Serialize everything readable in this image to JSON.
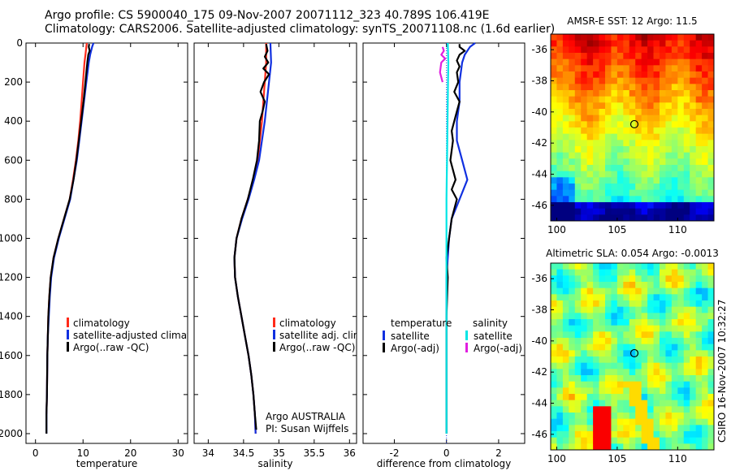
{
  "header": {
    "line1": "Argo profile: CS 5900040_175 09-Nov-2007 20071112_323 40.789S 106.419E",
    "line2": "Climatology: CARS2006. Satellite-adjusted climatology: synTS_20071108.nc (1.6d earlier)"
  },
  "side_label": "CSIRO 16-Nov-2007 10:32:27",
  "colors": {
    "climatology": "#ff2a1a",
    "satellite": "#1030e0",
    "argo": "#000000",
    "sal_satellite": "#00e5e5",
    "sal_argo": "#e020e0"
  },
  "chart_data": [
    {
      "type": "line",
      "name": "temperature-profile",
      "xlabel": "temperature",
      "ylabel": "",
      "xlim": [
        -2,
        32
      ],
      "ylim": [
        0,
        2050
      ],
      "y_reversed": true,
      "xticks": [
        0,
        10,
        20,
        30
      ],
      "yticks": [
        0,
        200,
        400,
        600,
        800,
        1000,
        1200,
        1400,
        1600,
        1800,
        2000
      ],
      "legend": [
        "climatology",
        "satellite-adjusted climatology",
        "Argo(..raw -QC)"
      ],
      "series": [
        {
          "name": "climatology",
          "color": "#ff2a1a",
          "points": [
            [
              10.8,
              0
            ],
            [
              10.7,
              20
            ],
            [
              10.5,
              60
            ],
            [
              10.3,
              100
            ],
            [
              10.0,
              200
            ],
            [
              9.7,
              300
            ],
            [
              9.4,
              400
            ],
            [
              9.0,
              500
            ],
            [
              8.5,
              600
            ],
            [
              7.9,
              700
            ],
            [
              7.2,
              800
            ],
            [
              6.0,
              900
            ],
            [
              4.8,
              1000
            ],
            [
              3.8,
              1100
            ],
            [
              3.2,
              1200
            ],
            [
              2.9,
              1300
            ],
            [
              2.7,
              1400
            ],
            [
              2.6,
              1500
            ],
            [
              2.5,
              1600
            ],
            [
              2.4,
              1800
            ],
            [
              2.3,
              1900
            ]
          ]
        },
        {
          "name": "satellite-adjusted climatology",
          "color": "#1030e0",
          "points": [
            [
              12.2,
              0
            ],
            [
              11.9,
              20
            ],
            [
              11.5,
              60
            ],
            [
              11.2,
              100
            ],
            [
              10.7,
              200
            ],
            [
              10.2,
              300
            ],
            [
              9.7,
              400
            ],
            [
              9.2,
              500
            ],
            [
              8.7,
              600
            ],
            [
              8.0,
              700
            ],
            [
              7.3,
              800
            ],
            [
              6.1,
              900
            ],
            [
              4.9,
              1000
            ],
            [
              3.9,
              1100
            ],
            [
              3.3,
              1200
            ],
            [
              3.0,
              1300
            ],
            [
              2.8,
              1400
            ],
            [
              2.6,
              1500
            ],
            [
              2.5,
              1600
            ],
            [
              2.4,
              1800
            ],
            [
              2.3,
              1900
            ],
            [
              2.3,
              2000
            ]
          ]
        },
        {
          "name": "Argo(..raw -QC)",
          "color": "#000000",
          "points": [
            [
              11.3,
              5
            ],
            [
              11.2,
              20
            ],
            [
              11.4,
              40
            ],
            [
              11.1,
              60
            ],
            [
              10.9,
              100
            ],
            [
              10.5,
              200
            ],
            [
              10.1,
              300
            ],
            [
              9.6,
              400
            ],
            [
              9.1,
              500
            ],
            [
              8.6,
              600
            ],
            [
              8.0,
              700
            ],
            [
              7.2,
              800
            ],
            [
              6.0,
              900
            ],
            [
              4.8,
              1000
            ],
            [
              3.8,
              1100
            ],
            [
              3.2,
              1200
            ],
            [
              2.9,
              1300
            ],
            [
              2.7,
              1400
            ],
            [
              2.6,
              1500
            ],
            [
              2.5,
              1600
            ],
            [
              2.4,
              1800
            ],
            [
              2.3,
              1900
            ],
            [
              2.3,
              2000
            ]
          ]
        }
      ]
    },
    {
      "type": "line",
      "name": "salinity-profile",
      "xlabel": "salinity",
      "xlim": [
        33.8,
        36.1
      ],
      "ylim": [
        0,
        2050
      ],
      "y_reversed": true,
      "xticks": [
        34,
        34.5,
        35,
        35.5,
        36
      ],
      "xticklabels": [
        "34",
        "34.5",
        "35",
        "35.5",
        "36"
      ],
      "legend": [
        "climatology",
        "satellite adj. clim.",
        "Argo(..raw -QC)"
      ],
      "annotation": [
        "Argo AUSTRALIA",
        "PI: Susan Wijffels"
      ],
      "series": [
        {
          "name": "climatology",
          "color": "#ff2a1a",
          "points": [
            [
              34.82,
              0
            ],
            [
              34.82,
              100
            ],
            [
              34.8,
              200
            ],
            [
              34.78,
              300
            ],
            [
              34.76,
              400
            ],
            [
              34.73,
              500
            ],
            [
              34.7,
              600
            ],
            [
              34.64,
              700
            ],
            [
              34.56,
              800
            ],
            [
              34.47,
              900
            ],
            [
              34.4,
              1000
            ],
            [
              34.37,
              1100
            ],
            [
              34.38,
              1200
            ],
            [
              34.42,
              1300
            ],
            [
              34.47,
              1400
            ],
            [
              34.52,
              1500
            ],
            [
              34.57,
              1600
            ],
            [
              34.61,
              1700
            ],
            [
              34.64,
              1800
            ],
            [
              34.66,
              1900
            ],
            [
              34.67,
              2000
            ]
          ]
        },
        {
          "name": "satellite adj. clim.",
          "color": "#1030e0",
          "points": [
            [
              34.88,
              0
            ],
            [
              34.89,
              100
            ],
            [
              34.86,
              200
            ],
            [
              34.83,
              300
            ],
            [
              34.8,
              400
            ],
            [
              34.76,
              500
            ],
            [
              34.72,
              600
            ],
            [
              34.65,
              700
            ],
            [
              34.57,
              800
            ],
            [
              34.48,
              900
            ],
            [
              34.4,
              1000
            ],
            [
              34.37,
              1100
            ],
            [
              34.38,
              1200
            ],
            [
              34.42,
              1300
            ],
            [
              34.47,
              1400
            ],
            [
              34.52,
              1500
            ],
            [
              34.57,
              1600
            ],
            [
              34.61,
              1700
            ],
            [
              34.64,
              1800
            ],
            [
              34.66,
              1900
            ],
            [
              34.67,
              2000
            ]
          ]
        },
        {
          "name": "Argo(..raw -QC)",
          "color": "#000000",
          "points": [
            [
              34.82,
              5
            ],
            [
              34.84,
              40
            ],
            [
              34.8,
              70
            ],
            [
              34.85,
              100
            ],
            [
              34.78,
              130
            ],
            [
              34.86,
              160
            ],
            [
              34.79,
              200
            ],
            [
              34.74,
              250
            ],
            [
              34.8,
              300
            ],
            [
              34.77,
              350
            ],
            [
              34.73,
              400
            ],
            [
              34.72,
              500
            ],
            [
              34.69,
              600
            ],
            [
              34.63,
              700
            ],
            [
              34.56,
              800
            ],
            [
              34.47,
              900
            ],
            [
              34.4,
              1000
            ],
            [
              34.37,
              1100
            ],
            [
              34.38,
              1200
            ],
            [
              34.42,
              1300
            ],
            [
              34.47,
              1400
            ],
            [
              34.52,
              1500
            ],
            [
              34.57,
              1600
            ],
            [
              34.61,
              1700
            ],
            [
              34.64,
              1800
            ],
            [
              34.66,
              1900
            ],
            [
              34.68,
              1980
            ]
          ]
        }
      ]
    },
    {
      "type": "line",
      "name": "difference-profile",
      "xlabel": "difference from climatology",
      "xlim": [
        -3.2,
        3.0
      ],
      "ylim": [
        0,
        2050
      ],
      "y_reversed": true,
      "xticks": [
        -2,
        0,
        2
      ],
      "xticklabels": [
        "-2",
        "0",
        "2"
      ],
      "legend_headers": [
        "temperature",
        "salinity"
      ],
      "legend": [
        "satellite",
        "Argo(-adj)",
        "satellite",
        "Argo(-adj)"
      ],
      "series": [
        {
          "name": "temperature satellite",
          "color": "#1030e0",
          "points": [
            [
              1.1,
              0
            ],
            [
              0.9,
              20
            ],
            [
              0.7,
              60
            ],
            [
              0.6,
              100
            ],
            [
              0.5,
              200
            ],
            [
              0.5,
              300
            ],
            [
              0.4,
              400
            ],
            [
              0.4,
              500
            ],
            [
              0.6,
              600
            ],
            [
              0.8,
              700
            ],
            [
              0.5,
              800
            ],
            [
              0.2,
              900
            ],
            [
              0.1,
              1000
            ],
            [
              0.0,
              1200
            ],
            [
              0.0,
              1400
            ],
            [
              0.0,
              1600
            ],
            [
              0.0,
              2000
            ]
          ]
        },
        {
          "name": "temperature Argo(-adj)",
          "color": "#000000",
          "points": [
            [
              0.5,
              5
            ],
            [
              0.5,
              20
            ],
            [
              0.7,
              40
            ],
            [
              0.5,
              60
            ],
            [
              0.4,
              90
            ],
            [
              0.5,
              120
            ],
            [
              0.4,
              150
            ],
            [
              0.45,
              200
            ],
            [
              0.3,
              250
            ],
            [
              0.5,
              300
            ],
            [
              0.4,
              350
            ],
            [
              0.3,
              400
            ],
            [
              0.2,
              450
            ],
            [
              0.25,
              500
            ],
            [
              0.15,
              600
            ],
            [
              0.35,
              700
            ],
            [
              0.2,
              750
            ],
            [
              0.4,
              800
            ],
            [
              0.3,
              850
            ],
            [
              0.2,
              900
            ],
            [
              0.1,
              1000
            ],
            [
              0.0,
              1100
            ],
            [
              0.05,
              1200
            ],
            [
              0.0,
              1400
            ],
            [
              0.0,
              1600
            ],
            [
              0.0,
              2000
            ]
          ]
        },
        {
          "name": "salinity satellite",
          "color": "#00e5e5",
          "points": [
            [
              0.05,
              0
            ],
            [
              0.07,
              100
            ],
            [
              0.06,
              200
            ],
            [
              0.05,
              300
            ],
            [
              0.04,
              400
            ],
            [
              0.03,
              500
            ],
            [
              0.02,
              600
            ],
            [
              0.01,
              700
            ],
            [
              0.0,
              800
            ],
            [
              0.0,
              1000
            ],
            [
              0.0,
              1400
            ],
            [
              0.0,
              2000
            ]
          ]
        },
        {
          "name": "salinity Argo(-adj)",
          "color": "#e020e0",
          "points": [
            [
              -0.15,
              20
            ],
            [
              -0.1,
              40
            ],
            [
              -0.2,
              60
            ],
            [
              -0.05,
              80
            ],
            [
              -0.2,
              100
            ],
            [
              -0.25,
              150
            ],
            [
              -0.15,
              200
            ]
          ]
        }
      ]
    },
    {
      "type": "heatmap",
      "name": "sst-map",
      "title": "AMSR-E SST: 12 Argo: 11.5",
      "xlim": [
        99.5,
        113
      ],
      "ylim": [
        -47,
        -35
      ],
      "xticks": [
        100,
        105,
        110
      ],
      "yticks": [
        -36,
        -38,
        -40,
        -42,
        -44,
        -46
      ],
      "marker": {
        "lon": 106.419,
        "lat": -40.789
      }
    },
    {
      "type": "heatmap",
      "name": "sla-map",
      "title": "Altimetric SLA: 0.054 Argo: -0.0013",
      "xlim": [
        99.5,
        113
      ],
      "ylim": [
        -47,
        -35
      ],
      "xticks": [
        100,
        105,
        110
      ],
      "yticks": [
        -36,
        -38,
        -40,
        -42,
        -44,
        -46
      ],
      "marker": {
        "lon": 106.419,
        "lat": -40.789
      }
    }
  ]
}
